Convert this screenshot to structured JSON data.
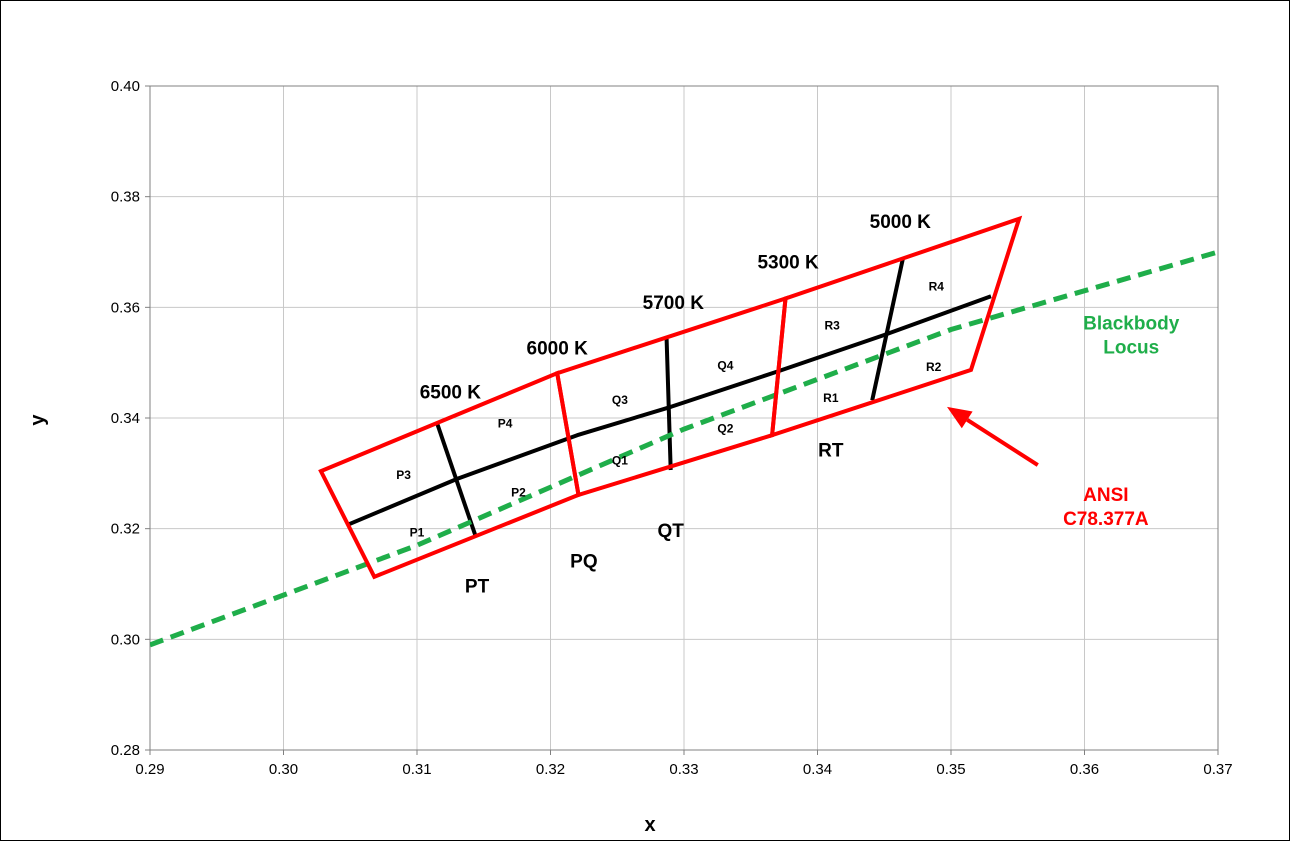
{
  "chart_data": {
    "type": "line",
    "xlabel": "x",
    "ylabel": "y",
    "xlim": [
      0.29,
      0.37
    ],
    "ylim": [
      0.28,
      0.4
    ],
    "x_ticks": [
      "0.29",
      "0.30",
      "0.31",
      "0.32",
      "0.33",
      "0.34",
      "0.35",
      "0.36",
      "0.37"
    ],
    "y_ticks": [
      "0.28",
      "0.30",
      "0.32",
      "0.34",
      "0.36",
      "0.38",
      "0.40"
    ],
    "x_tick_values": [
      0.29,
      0.3,
      0.31,
      0.32,
      0.33,
      0.34,
      0.35,
      0.36,
      0.37
    ],
    "y_tick_values": [
      0.28,
      0.3,
      0.32,
      0.34,
      0.36,
      0.38,
      0.4
    ],
    "grid": true,
    "colors": {
      "ansi": "#ff0000",
      "center": "#000000",
      "locus": "#1fae4a"
    },
    "blackbody_locus": {
      "name": "Blackbody\nLocus",
      "points": [
        [
          0.29,
          0.299
        ],
        [
          0.31,
          0.317
        ],
        [
          0.33,
          0.338
        ],
        [
          0.35,
          0.356
        ],
        [
          0.37,
          0.37
        ]
      ]
    },
    "ansi_quadrangles": [
      {
        "id": "PT",
        "points": [
          [
            0.3028,
            0.3304
          ],
          [
            0.3068,
            0.3113
          ],
          [
            0.3221,
            0.3261
          ],
          [
            0.3205,
            0.3481
          ]
        ]
      },
      {
        "id": "PQ_QT",
        "points": [
          [
            0.3205,
            0.3481
          ],
          [
            0.3221,
            0.3261
          ],
          [
            0.3366,
            0.3369
          ],
          [
            0.3376,
            0.3616
          ]
        ]
      },
      {
        "id": "RT",
        "points": [
          [
            0.3376,
            0.3616
          ],
          [
            0.3366,
            0.3369
          ],
          [
            0.3515,
            0.3487
          ],
          [
            0.3551,
            0.376
          ]
        ]
      }
    ],
    "center_lines": [
      {
        "name": "center",
        "points": [
          [
            0.3048,
            0.3207
          ],
          [
            0.313,
            0.329
          ],
          [
            0.322,
            0.3369
          ],
          [
            0.329,
            0.342
          ],
          [
            0.337,
            0.3484
          ],
          [
            0.345,
            0.355
          ],
          [
            0.353,
            0.362
          ]
        ]
      },
      {
        "name": "6500K-divider",
        "points": [
          [
            0.3115,
            0.3391
          ],
          [
            0.3144,
            0.3186
          ]
        ]
      },
      {
        "name": "5700K-divider",
        "points": [
          [
            0.3287,
            0.3543
          ],
          [
            0.329,
            0.3306
          ]
        ]
      },
      {
        "name": "5000K-divider",
        "points": [
          [
            0.3464,
            0.3688
          ],
          [
            0.3441,
            0.3432
          ]
        ]
      }
    ],
    "cct_labels": [
      {
        "text": "6500 K",
        "x": 0.3125,
        "y": 0.3435
      },
      {
        "text": "6000 K",
        "x": 0.3205,
        "y": 0.3515
      },
      {
        "text": "5700 K",
        "x": 0.3292,
        "y": 0.3597
      },
      {
        "text": "5300 K",
        "x": 0.3378,
        "y": 0.367
      },
      {
        "text": "5000 K",
        "x": 0.3462,
        "y": 0.3743
      }
    ],
    "bin_labels": [
      {
        "text": "P1",
        "x": 0.31,
        "y": 0.3186
      },
      {
        "text": "P2",
        "x": 0.3176,
        "y": 0.3258
      },
      {
        "text": "P3",
        "x": 0.309,
        "y": 0.329
      },
      {
        "text": "P4",
        "x": 0.3166,
        "y": 0.3383
      },
      {
        "text": "Q1",
        "x": 0.3252,
        "y": 0.3316
      },
      {
        "text": "Q2",
        "x": 0.3331,
        "y": 0.3374
      },
      {
        "text": "Q3",
        "x": 0.3252,
        "y": 0.3425
      },
      {
        "text": "Q4",
        "x": 0.3331,
        "y": 0.3488
      },
      {
        "text": "R1",
        "x": 0.341,
        "y": 0.3429
      },
      {
        "text": "R2",
        "x": 0.3487,
        "y": 0.3485
      },
      {
        "text": "R3",
        "x": 0.3411,
        "y": 0.356
      },
      {
        "text": "R4",
        "x": 0.3489,
        "y": 0.363
      }
    ],
    "group_labels": [
      {
        "text": "PT",
        "x": 0.3145,
        "y": 0.3085
      },
      {
        "text": "PQ",
        "x": 0.3225,
        "y": 0.313
      },
      {
        "text": "QT",
        "x": 0.329,
        "y": 0.3185
      },
      {
        "text": "RT",
        "x": 0.341,
        "y": 0.333
      }
    ],
    "annotations": {
      "locus_label": {
        "lines": [
          "Blackbody",
          "Locus"
        ],
        "x": 0.3635,
        "y": 0.356
      },
      "ansi_label": {
        "lines": [
          "ANSI",
          "C78.377A"
        ],
        "x": 0.3616,
        "y": 0.325
      },
      "arrow": {
        "from": [
          0.3565,
          0.3315
        ],
        "to": [
          0.3497,
          0.342
        ]
      }
    }
  }
}
